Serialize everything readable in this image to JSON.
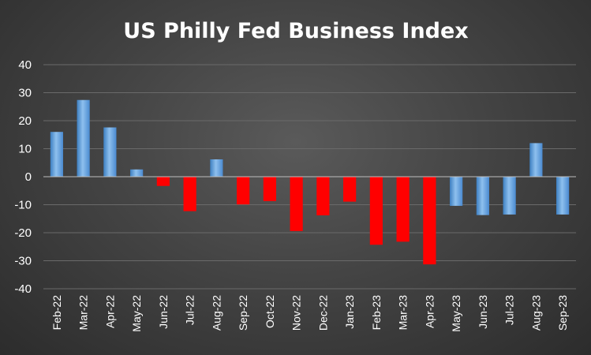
{
  "chart_data": {
    "type": "bar",
    "title": "US Philly Fed Business Index",
    "xlabel": "",
    "ylabel": "",
    "ylim": [
      -40,
      40
    ],
    "yticks": [
      40,
      30,
      20,
      10,
      0,
      -10,
      -20,
      -30,
      -40
    ],
    "grid": true,
    "legend": "none",
    "categories": [
      "Feb-22",
      "Mar-22",
      "Apr-22",
      "May-22",
      "Jun-22",
      "Jul-22",
      "Aug-22",
      "Sep-22",
      "Oct-22",
      "Nov-22",
      "Dec-22",
      "Jan-23",
      "Feb-23",
      "Mar-23",
      "Apr-23",
      "May-23",
      "Jun-23",
      "Jul-23",
      "Aug-23",
      "Sep-23"
    ],
    "values": [
      16.0,
      27.4,
      17.6,
      2.6,
      -3.3,
      -12.3,
      6.2,
      -9.9,
      -8.7,
      -19.4,
      -13.8,
      -8.9,
      -24.3,
      -23.2,
      -31.3,
      -10.4,
      -13.7,
      -13.5,
      12.0,
      -13.5
    ],
    "colors": {
      "blue_fill": "#5b9bd5",
      "blue_light": "#8ec0ee",
      "red_fill": "#ff0000"
    },
    "bar_colors": [
      "blue",
      "blue",
      "blue",
      "blue",
      "red",
      "red",
      "blue",
      "red",
      "red",
      "red",
      "red",
      "red",
      "red",
      "red",
      "red",
      "blue",
      "blue",
      "blue",
      "blue",
      "blue"
    ]
  }
}
